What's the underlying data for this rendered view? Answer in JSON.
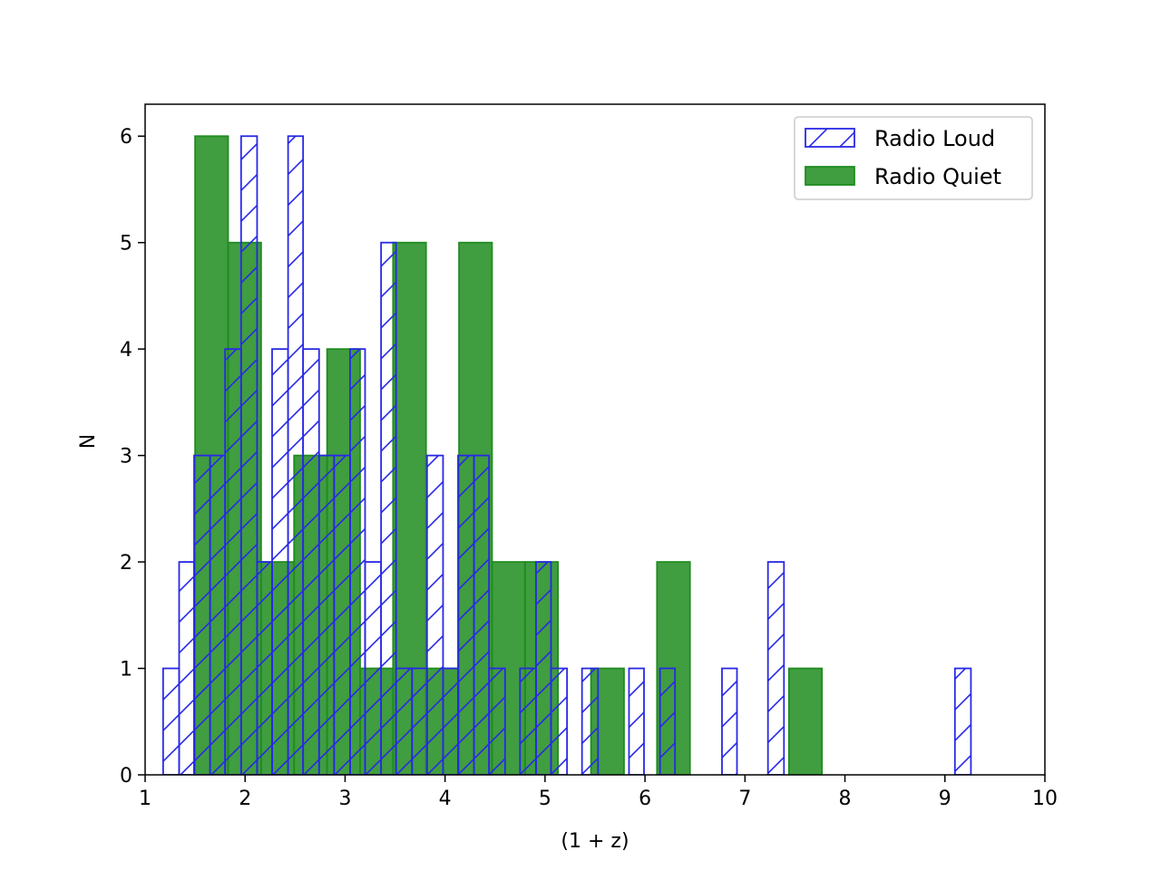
{
  "chart_data": {
    "type": "bar",
    "title": "",
    "xlabel": "(1 + z)",
    "ylabel": "N",
    "xlim": [
      1,
      10
    ],
    "ylim": [
      0,
      6.3
    ],
    "xticks": [
      1,
      2,
      3,
      4,
      5,
      6,
      7,
      8,
      9,
      10
    ],
    "yticks": [
      0,
      1,
      2,
      3,
      4,
      5,
      6
    ],
    "grid": false,
    "legend_position": "top-right",
    "colors": {
      "radio_loud": "#2828e6",
      "radio_quiet": "#1f8c1f"
    },
    "series": [
      {
        "name": "Radio Loud",
        "style": "hatched-outline",
        "bins": [
          {
            "x0": 1.18,
            "x1": 1.34,
            "count": 1
          },
          {
            "x0": 1.34,
            "x1": 1.49,
            "count": 2
          },
          {
            "x0": 1.49,
            "x1": 1.65,
            "count": 3
          },
          {
            "x0": 1.65,
            "x1": 1.8,
            "count": 3
          },
          {
            "x0": 1.8,
            "x1": 1.96,
            "count": 4
          },
          {
            "x0": 1.96,
            "x1": 2.12,
            "count": 6
          },
          {
            "x0": 2.12,
            "x1": 2.27,
            "count": 2
          },
          {
            "x0": 2.27,
            "x1": 2.43,
            "count": 4
          },
          {
            "x0": 2.43,
            "x1": 2.58,
            "count": 6
          },
          {
            "x0": 2.58,
            "x1": 2.74,
            "count": 4
          },
          {
            "x0": 2.74,
            "x1": 2.89,
            "count": 3
          },
          {
            "x0": 2.89,
            "x1": 3.05,
            "count": 3
          },
          {
            "x0": 3.05,
            "x1": 3.2,
            "count": 4
          },
          {
            "x0": 3.2,
            "x1": 3.36,
            "count": 2
          },
          {
            "x0": 3.36,
            "x1": 3.51,
            "count": 5
          },
          {
            "x0": 3.51,
            "x1": 3.67,
            "count": 1
          },
          {
            "x0": 3.67,
            "x1": 3.82,
            "count": 1
          },
          {
            "x0": 3.82,
            "x1": 3.98,
            "count": 3
          },
          {
            "x0": 3.98,
            "x1": 4.13,
            "count": 1
          },
          {
            "x0": 4.13,
            "x1": 4.29,
            "count": 3
          },
          {
            "x0": 4.29,
            "x1": 4.44,
            "count": 3
          },
          {
            "x0": 4.44,
            "x1": 4.6,
            "count": 1
          },
          {
            "x0": 4.6,
            "x1": 4.75,
            "count": 0
          },
          {
            "x0": 4.75,
            "x1": 4.91,
            "count": 1
          },
          {
            "x0": 4.91,
            "x1": 5.06,
            "count": 2
          },
          {
            "x0": 5.06,
            "x1": 5.22,
            "count": 1
          },
          {
            "x0": 5.22,
            "x1": 5.37,
            "count": 0
          },
          {
            "x0": 5.37,
            "x1": 5.53,
            "count": 1
          },
          {
            "x0": 5.53,
            "x1": 5.68,
            "count": 0
          },
          {
            "x0": 5.68,
            "x1": 5.84,
            "count": 0
          },
          {
            "x0": 5.84,
            "x1": 5.99,
            "count": 1
          },
          {
            "x0": 5.99,
            "x1": 6.15,
            "count": 0
          },
          {
            "x0": 6.15,
            "x1": 6.3,
            "count": 1
          },
          {
            "x0": 6.77,
            "x1": 6.92,
            "count": 1
          },
          {
            "x0": 7.23,
            "x1": 7.39,
            "count": 2
          },
          {
            "x0": 9.1,
            "x1": 9.26,
            "count": 1
          }
        ]
      },
      {
        "name": "Radio Quiet",
        "style": "filled",
        "bins": [
          {
            "x0": 1.5,
            "x1": 1.83,
            "count": 6
          },
          {
            "x0": 1.83,
            "x1": 2.16,
            "count": 5
          },
          {
            "x0": 2.16,
            "x1": 2.49,
            "count": 2
          },
          {
            "x0": 2.49,
            "x1": 2.82,
            "count": 3
          },
          {
            "x0": 2.82,
            "x1": 3.15,
            "count": 4
          },
          {
            "x0": 3.15,
            "x1": 3.48,
            "count": 1
          },
          {
            "x0": 3.48,
            "x1": 3.81,
            "count": 5
          },
          {
            "x0": 3.81,
            "x1": 4.14,
            "count": 1
          },
          {
            "x0": 4.14,
            "x1": 4.47,
            "count": 5
          },
          {
            "x0": 4.47,
            "x1": 4.8,
            "count": 2
          },
          {
            "x0": 4.8,
            "x1": 5.13,
            "count": 2
          },
          {
            "x0": 5.46,
            "x1": 5.79,
            "count": 1
          },
          {
            "x0": 6.12,
            "x1": 6.45,
            "count": 2
          },
          {
            "x0": 7.44,
            "x1": 7.77,
            "count": 1
          }
        ]
      }
    ]
  }
}
